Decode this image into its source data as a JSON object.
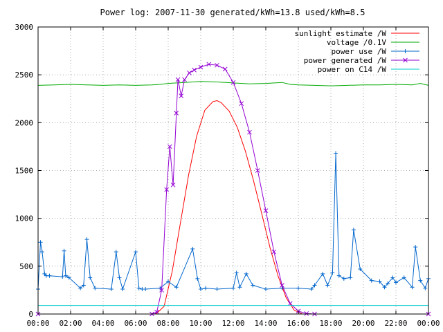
{
  "chart_data": {
    "type": "line",
    "title": "Power log: 2007-11-30 generated/kWh=13.8 used/kWh=8.5",
    "xlabel": "",
    "ylabel": "",
    "xlim": [
      "00:00",
      "24:00"
    ],
    "ylim": [
      0,
      3000
    ],
    "x_ticks": [
      "00:00",
      "02:00",
      "04:00",
      "06:00",
      "08:00",
      "10:00",
      "12:00",
      "14:00",
      "16:00",
      "18:00",
      "20:00",
      "22:00",
      "00:00"
    ],
    "y_ticks": [
      0,
      500,
      1000,
      1500,
      2000,
      2500,
      3000
    ],
    "grid": true,
    "legend_position": "top-right",
    "series": [
      {
        "name": "sunlight estimate /W",
        "color": "#ff0000",
        "style": "line",
        "x": [
          7.25,
          7.75,
          8.25,
          8.75,
          9.25,
          9.75,
          10.25,
          10.75,
          11.0,
          11.25,
          11.75,
          12.25,
          12.75,
          13.25,
          13.75,
          14.25,
          14.75,
          15.25,
          15.75,
          16.25
        ],
        "y": [
          0,
          80,
          450,
          950,
          1450,
          1860,
          2130,
          2220,
          2230,
          2210,
          2120,
          1950,
          1700,
          1390,
          1050,
          700,
          400,
          170,
          40,
          0
        ]
      },
      {
        "name": "voltage /0.1V",
        "color": "#00aa00",
        "style": "line",
        "x": [
          0,
          1,
          2,
          3,
          4,
          5,
          6,
          7,
          7.5,
          8,
          9,
          10,
          11,
          12,
          13,
          14,
          15,
          15.5,
          16,
          17,
          18,
          19,
          20,
          21,
          22,
          23,
          23.5,
          24
        ],
        "y": [
          2390,
          2395,
          2400,
          2395,
          2390,
          2395,
          2390,
          2395,
          2400,
          2410,
          2420,
          2430,
          2425,
          2415,
          2405,
          2410,
          2420,
          2400,
          2395,
          2390,
          2385,
          2390,
          2395,
          2395,
          2400,
          2395,
          2410,
          2390
        ]
      },
      {
        "name": "power use /W",
        "color": "#0066cc",
        "style": "line+plus",
        "x": [
          0,
          0.15,
          0.25,
          0.4,
          0.5,
          0.7,
          1.5,
          1.6,
          1.7,
          1.9,
          2.6,
          2.8,
          3.0,
          3.2,
          3.5,
          4.5,
          4.8,
          5.0,
          5.2,
          6.0,
          6.2,
          6.4,
          6.6,
          7.5,
          8.0,
          8.5,
          9.5,
          9.8,
          10.0,
          10.3,
          11.0,
          12.0,
          12.2,
          12.4,
          12.8,
          13.2,
          14.0,
          15.0,
          16.0,
          16.8,
          17.0,
          17.5,
          17.8,
          18.1,
          18.3,
          18.5,
          18.8,
          19.2,
          19.4,
          19.8,
          20.5,
          21.0,
          21.3,
          21.5,
          21.8,
          22.0,
          22.5,
          23.0,
          23.2,
          23.5,
          23.8,
          24
        ],
        "y": [
          260,
          750,
          650,
          420,
          400,
          400,
          390,
          660,
          400,
          380,
          270,
          300,
          780,
          380,
          270,
          260,
          650,
          380,
          260,
          650,
          270,
          260,
          260,
          270,
          340,
          280,
          680,
          370,
          260,
          270,
          260,
          270,
          430,
          280,
          420,
          300,
          260,
          270,
          270,
          260,
          300,
          420,
          300,
          430,
          1680,
          400,
          370,
          380,
          880,
          470,
          350,
          340,
          280,
          320,
          380,
          330,
          380,
          280,
          700,
          350,
          270,
          370
        ]
      },
      {
        "name": "power generated /W",
        "color": "#9400d3",
        "style": "line+cross",
        "x": [
          0,
          7.0,
          7.3,
          7.6,
          7.9,
          8.1,
          8.3,
          8.5,
          8.6,
          8.8,
          9.0,
          9.3,
          9.6,
          10.0,
          10.5,
          11.0,
          11.5,
          12.0,
          12.5,
          13.0,
          13.5,
          14.0,
          14.5,
          15.0,
          15.5,
          16.0,
          16.5,
          17.0,
          24
        ],
        "y": [
          0,
          0,
          20,
          250,
          1300,
          1750,
          1350,
          2100,
          2450,
          2280,
          2450,
          2520,
          2550,
          2580,
          2610,
          2600,
          2560,
          2420,
          2200,
          1900,
          1500,
          1080,
          650,
          300,
          110,
          30,
          5,
          0,
          0
        ]
      },
      {
        "name": "power on C14 /W",
        "color": "#00cccc",
        "style": "line",
        "x": [
          0,
          24
        ],
        "y": [
          90,
          90
        ]
      }
    ]
  }
}
